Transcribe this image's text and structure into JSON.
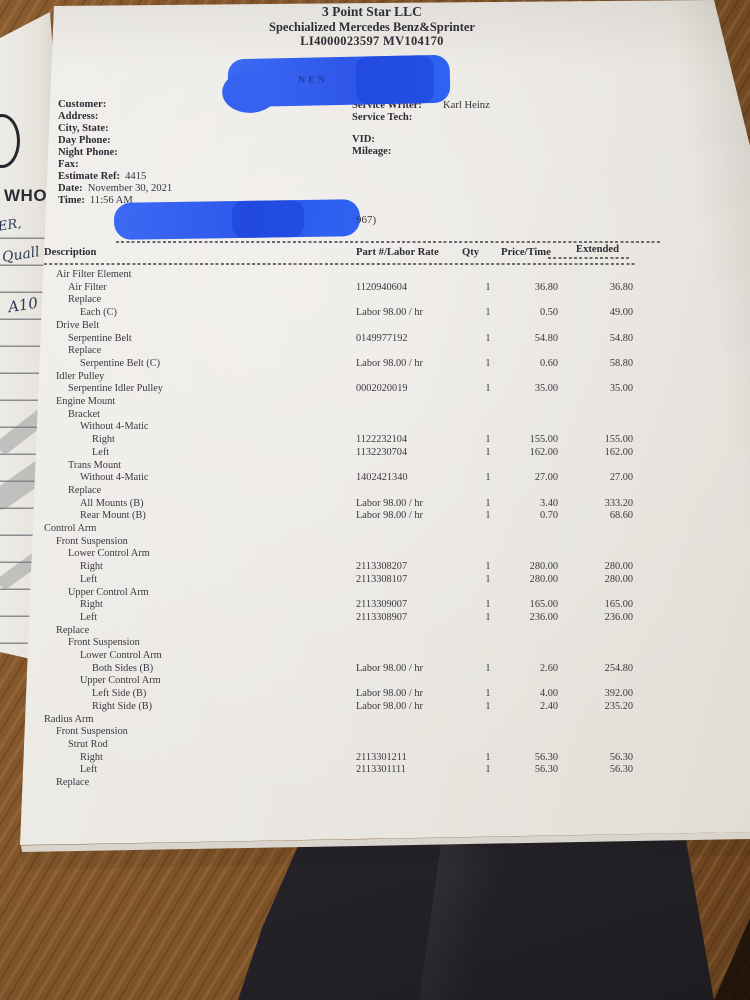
{
  "header": {
    "company": "3 Point Star LLC",
    "subtitle": "Spechialized Mercedes Benz&Sprinter",
    "license_line": "LI4000023597 MV104170"
  },
  "customer_block": {
    "labels": [
      "Customer:",
      "Address:",
      "City, State:",
      "Day Phone:",
      "Night Phone:",
      "Fax:"
    ],
    "estimate_ref_label": "Estimate Ref:",
    "estimate_ref": "4415",
    "date_label": "Date:",
    "date": "November 30, 2021",
    "time_label": "Time:",
    "time": "11:56 AM"
  },
  "service_block": {
    "service_writer_label": "Service Writer:",
    "service_writer": "Karl Heinz",
    "service_tech_label": "Service Tech:",
    "vid_label": "VID:",
    "mileage_label": "Mileage:"
  },
  "redactions": {
    "color": "#2f5bef",
    "visible_fragment_top": "NEN",
    "visible_fragment_mid": "967)"
  },
  "side_note": {
    "printed": "WHO",
    "handwriting": [
      "ER,",
      "Quall",
      "A10"
    ]
  },
  "table": {
    "columns": [
      "Description",
      "Part #/Labor Rate",
      "Qty",
      "Price/Time",
      "Extended"
    ],
    "rows": [
      {
        "desc": "Air Filter Element",
        "indent": 1,
        "part": "",
        "qty": "",
        "price": "",
        "ext": ""
      },
      {
        "desc": "Air Filter",
        "indent": 2,
        "part": "1120940604",
        "qty": "1",
        "price": "36.80",
        "ext": "36.80"
      },
      {
        "desc": "Replace",
        "indent": 2,
        "part": "",
        "qty": "",
        "price": "",
        "ext": ""
      },
      {
        "desc": "Each (C)",
        "indent": 3,
        "part": "Labor 98.00 / hr",
        "qty": "1",
        "price": "0.50",
        "ext": "49.00"
      },
      {
        "desc": "Drive Belt",
        "indent": 1,
        "part": "",
        "qty": "",
        "price": "",
        "ext": ""
      },
      {
        "desc": "Serpentine Belt",
        "indent": 2,
        "part": "0149977192",
        "qty": "1",
        "price": "54.80",
        "ext": "54.80"
      },
      {
        "desc": "Replace",
        "indent": 2,
        "part": "",
        "qty": "",
        "price": "",
        "ext": ""
      },
      {
        "desc": "Serpentine Belt (C)",
        "indent": 3,
        "part": "Labor 98.00 / hr",
        "qty": "1",
        "price": "0.60",
        "ext": "58.80"
      },
      {
        "desc": "Idler Pulley",
        "indent": 1,
        "part": "",
        "qty": "",
        "price": "",
        "ext": ""
      },
      {
        "desc": "Serpentine Idler Pulley",
        "indent": 2,
        "part": "0002020019",
        "qty": "1",
        "price": "35.00",
        "ext": "35.00"
      },
      {
        "desc": "Engine Mount",
        "indent": 1,
        "part": "",
        "qty": "",
        "price": "",
        "ext": ""
      },
      {
        "desc": "Bracket",
        "indent": 2,
        "part": "",
        "qty": "",
        "price": "",
        "ext": ""
      },
      {
        "desc": "Without 4-Matic",
        "indent": 3,
        "part": "",
        "qty": "",
        "price": "",
        "ext": ""
      },
      {
        "desc": "Right",
        "indent": 4,
        "part": "1122232104",
        "qty": "1",
        "price": "155.00",
        "ext": "155.00"
      },
      {
        "desc": "Left",
        "indent": 4,
        "part": "1132230704",
        "qty": "1",
        "price": "162.00",
        "ext": "162.00"
      },
      {
        "desc": "Trans Mount",
        "indent": 2,
        "part": "",
        "qty": "",
        "price": "",
        "ext": ""
      },
      {
        "desc": "Without 4-Matic",
        "indent": 3,
        "part": "1402421340",
        "qty": "1",
        "price": "27.00",
        "ext": "27.00"
      },
      {
        "desc": "Replace",
        "indent": 2,
        "part": "",
        "qty": "",
        "price": "",
        "ext": ""
      },
      {
        "desc": "All Mounts (B)",
        "indent": 3,
        "part": "Labor 98.00 / hr",
        "qty": "1",
        "price": "3.40",
        "ext": "333.20"
      },
      {
        "desc": "Rear Mount (B)",
        "indent": 3,
        "part": "Labor 98.00 / hr",
        "qty": "1",
        "price": "0.70",
        "ext": "68.60"
      },
      {
        "desc": "Control Arm",
        "indent": 0,
        "part": "",
        "qty": "",
        "price": "",
        "ext": ""
      },
      {
        "desc": "Front Suspension",
        "indent": 1,
        "part": "",
        "qty": "",
        "price": "",
        "ext": ""
      },
      {
        "desc": "Lower Control Arm",
        "indent": 2,
        "part": "",
        "qty": "",
        "price": "",
        "ext": ""
      },
      {
        "desc": "Right",
        "indent": 3,
        "part": "2113308207",
        "qty": "1",
        "price": "280.00",
        "ext": "280.00"
      },
      {
        "desc": "Left",
        "indent": 3,
        "part": "2113308107",
        "qty": "1",
        "price": "280.00",
        "ext": "280.00"
      },
      {
        "desc": "Upper Control Arm",
        "indent": 2,
        "part": "",
        "qty": "",
        "price": "",
        "ext": ""
      },
      {
        "desc": "Right",
        "indent": 3,
        "part": "2113309007",
        "qty": "1",
        "price": "165.00",
        "ext": "165.00"
      },
      {
        "desc": "Left",
        "indent": 3,
        "part": "2113308907",
        "qty": "1",
        "price": "236.00",
        "ext": "236.00"
      },
      {
        "desc": "Replace",
        "indent": 1,
        "part": "",
        "qty": "",
        "price": "",
        "ext": ""
      },
      {
        "desc": "Front Suspension",
        "indent": 2,
        "part": "",
        "qty": "",
        "price": "",
        "ext": ""
      },
      {
        "desc": "Lower Control Arm",
        "indent": 3,
        "part": "",
        "qty": "",
        "price": "",
        "ext": ""
      },
      {
        "desc": "Both Sides (B)",
        "indent": 4,
        "part": "Labor 98.00 / hr",
        "qty": "1",
        "price": "2.60",
        "ext": "254.80"
      },
      {
        "desc": "Upper Control Arm",
        "indent": 3,
        "part": "",
        "qty": "",
        "price": "",
        "ext": ""
      },
      {
        "desc": "Left Side (B)",
        "indent": 4,
        "part": "Labor 98.00 / hr",
        "qty": "1",
        "price": "4.00",
        "ext": "392.00"
      },
      {
        "desc": "Right Side (B)",
        "indent": 4,
        "part": "Labor 98.00 / hr",
        "qty": "1",
        "price": "2.40",
        "ext": "235.20"
      },
      {
        "desc": "Radius Arm",
        "indent": 0,
        "part": "",
        "qty": "",
        "price": "",
        "ext": ""
      },
      {
        "desc": "Front Suspension",
        "indent": 1,
        "part": "",
        "qty": "",
        "price": "",
        "ext": ""
      },
      {
        "desc": "Strut Rod",
        "indent": 2,
        "part": "",
        "qty": "",
        "price": "",
        "ext": ""
      },
      {
        "desc": "Right",
        "indent": 3,
        "part": "2113301211",
        "qty": "1",
        "price": "56.30",
        "ext": "56.30"
      },
      {
        "desc": "Left",
        "indent": 3,
        "part": "2113301111",
        "qty": "1",
        "price": "56.30",
        "ext": "56.30"
      },
      {
        "desc": "Replace",
        "indent": 1,
        "part": "",
        "qty": "",
        "price": "",
        "ext": ""
      }
    ]
  },
  "colors": {
    "redaction_blue": "#2f5bef",
    "wood_brown": "#7d5228",
    "paper_white": "#eae7e1",
    "dark_object": "#2a292d",
    "ink": "#36343c"
  }
}
